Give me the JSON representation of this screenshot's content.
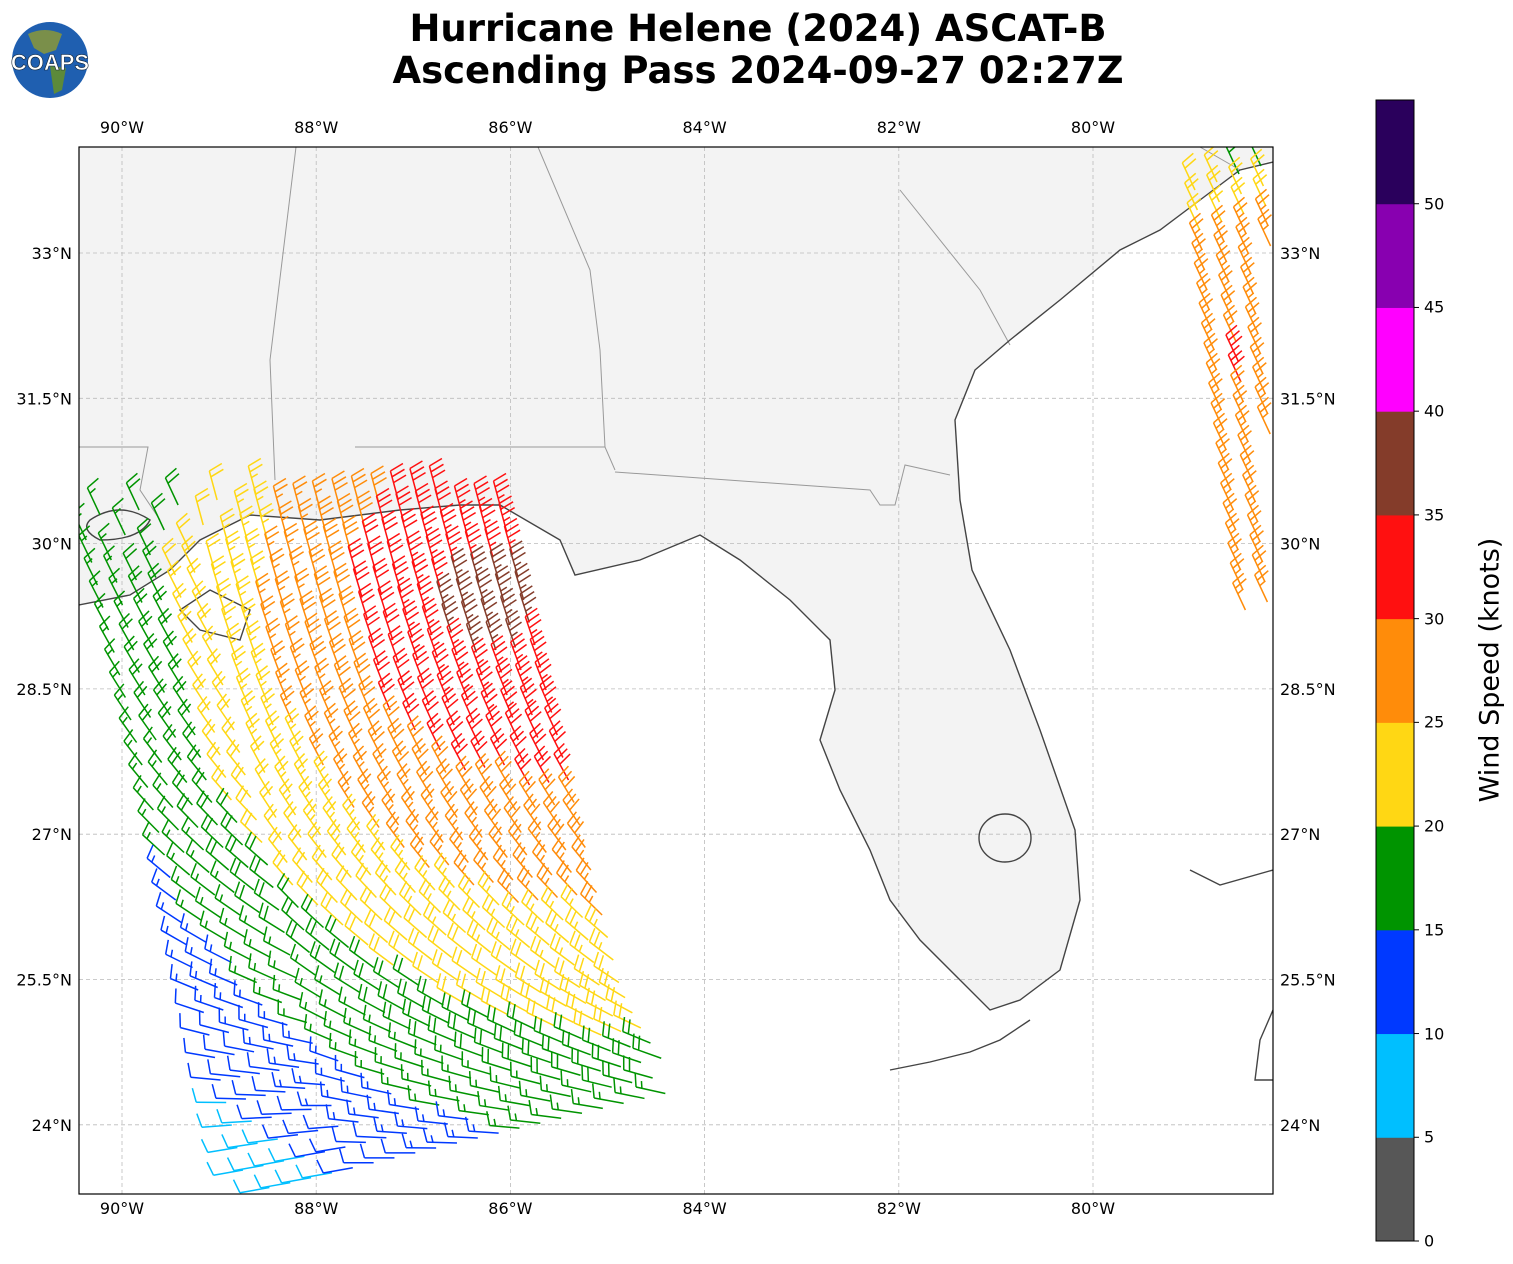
{
  "title": {
    "line1": "Hurricane Helene (2024) ASCAT-B",
    "line2": "Ascending Pass 2024-09-27 02:27Z"
  },
  "logo": {
    "text": "COAPS"
  },
  "axes": {
    "lon_ticks": [
      "90°W",
      "88°W",
      "86°W",
      "84°W",
      "82°W",
      "80°W"
    ],
    "lat_ticks": [
      "33°N",
      "31.5°N",
      "30°N",
      "28.5°N",
      "27°N",
      "25.5°N",
      "24°N"
    ]
  },
  "colorbar": {
    "label": "Wind Speed (knots)",
    "ticks": [
      "0",
      "5",
      "10",
      "15",
      "20",
      "25",
      "30",
      "35",
      "40",
      "45",
      "50"
    ],
    "bins": [
      {
        "min": 0,
        "max": 5,
        "color": "#575757"
      },
      {
        "min": 5,
        "max": 10,
        "color": "#00bfff"
      },
      {
        "min": 10,
        "max": 15,
        "color": "#0039ff"
      },
      {
        "min": 15,
        "max": 20,
        "color": "#009400"
      },
      {
        "min": 20,
        "max": 25,
        "color": "#ffd714"
      },
      {
        "min": 25,
        "max": 30,
        "color": "#ff8c0a"
      },
      {
        "min": 30,
        "max": 35,
        "color": "#ff1010"
      },
      {
        "min": 35,
        "max": 40,
        "color": "#843c2a"
      },
      {
        "min": 40,
        "max": 45,
        "color": "#ff00ff"
      },
      {
        "min": 45,
        "max": 50,
        "color": "#8800b0"
      },
      {
        "min": 50,
        "max": 55,
        "color": "#2a005c"
      }
    ]
  }
}
